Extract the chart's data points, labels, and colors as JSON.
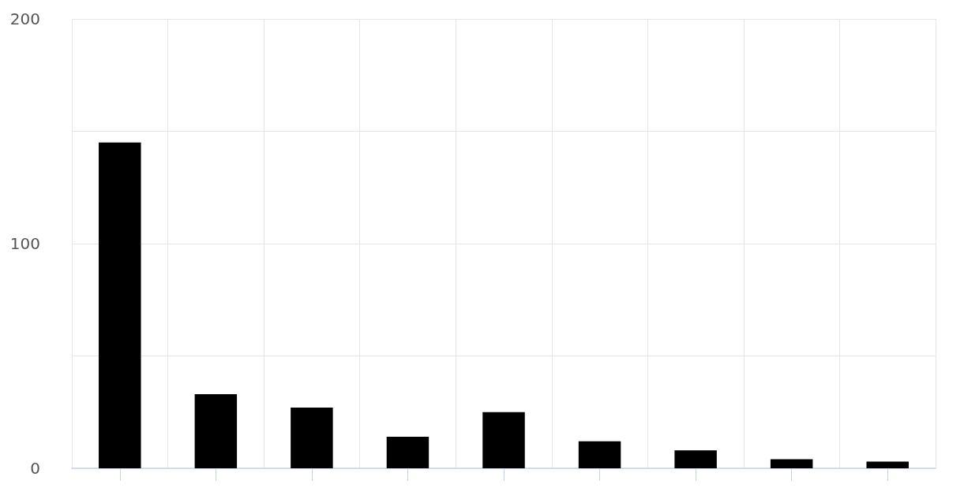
{
  "chart_data": {
    "type": "bar",
    "categories": [
      null,
      null,
      null,
      null,
      null,
      null,
      null,
      null,
      null
    ],
    "values": [
      145,
      33,
      27,
      14,
      25,
      12,
      8,
      4,
      3
    ],
    "color": "#000000",
    "ylim": [
      0,
      200
    ],
    "yticks": [
      0,
      {
        "value": 50,
        "label": null
      },
      100,
      {
        "value": 150,
        "label": null
      },
      200
    ],
    "grid": true
  }
}
